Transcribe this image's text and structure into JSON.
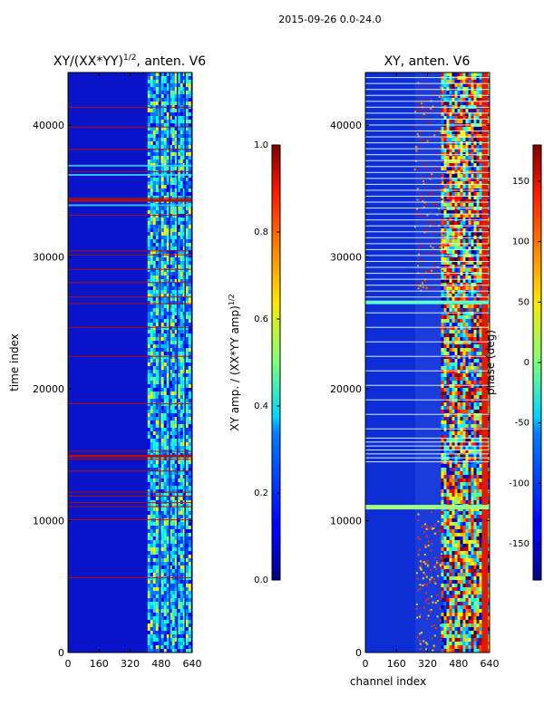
{
  "figure": {
    "suptitle": "2015-09-26 0.0-24.0"
  },
  "chart_data": [
    {
      "type": "heatmap",
      "title": "XY/(XX*YY)^{1/2}, anten. V6",
      "title_main": "XY/(XX*YY)",
      "title_sup": "1/2",
      "title_suffix": ", anten. V6",
      "xlabel": "",
      "ylabel": "time index",
      "xlim": [
        0,
        640
      ],
      "ylim": [
        0,
        44000
      ],
      "xticks": [
        0,
        160,
        320,
        480,
        640
      ],
      "yticks": [
        0,
        10000,
        20000,
        30000,
        40000
      ],
      "colorbar": {
        "label": "XY amp. / (XX*YY amp)^{1/2}",
        "label_main": "XY amp. / (XX*YY amp)",
        "label_sup": "1/2",
        "range": [
          0.0,
          1.0
        ],
        "ticks": [
          "0.0",
          "0.2",
          "0.4",
          "0.6",
          "0.8",
          "1.0"
        ]
      }
    },
    {
      "type": "heatmap",
      "title": "XY, anten. V6",
      "xlabel": "channel index",
      "ylabel": "",
      "xlim": [
        0,
        640
      ],
      "ylim": [
        0,
        44000
      ],
      "xticks": [
        0,
        160,
        320,
        480,
        640
      ],
      "yticks": [
        0,
        10000,
        20000,
        30000,
        40000
      ],
      "colorbar": {
        "label": "phase (deg)",
        "range": [
          -180,
          180
        ],
        "ticks": [
          "-150",
          "-100",
          "-50",
          "0",
          "50",
          "100",
          "150"
        ]
      }
    }
  ]
}
